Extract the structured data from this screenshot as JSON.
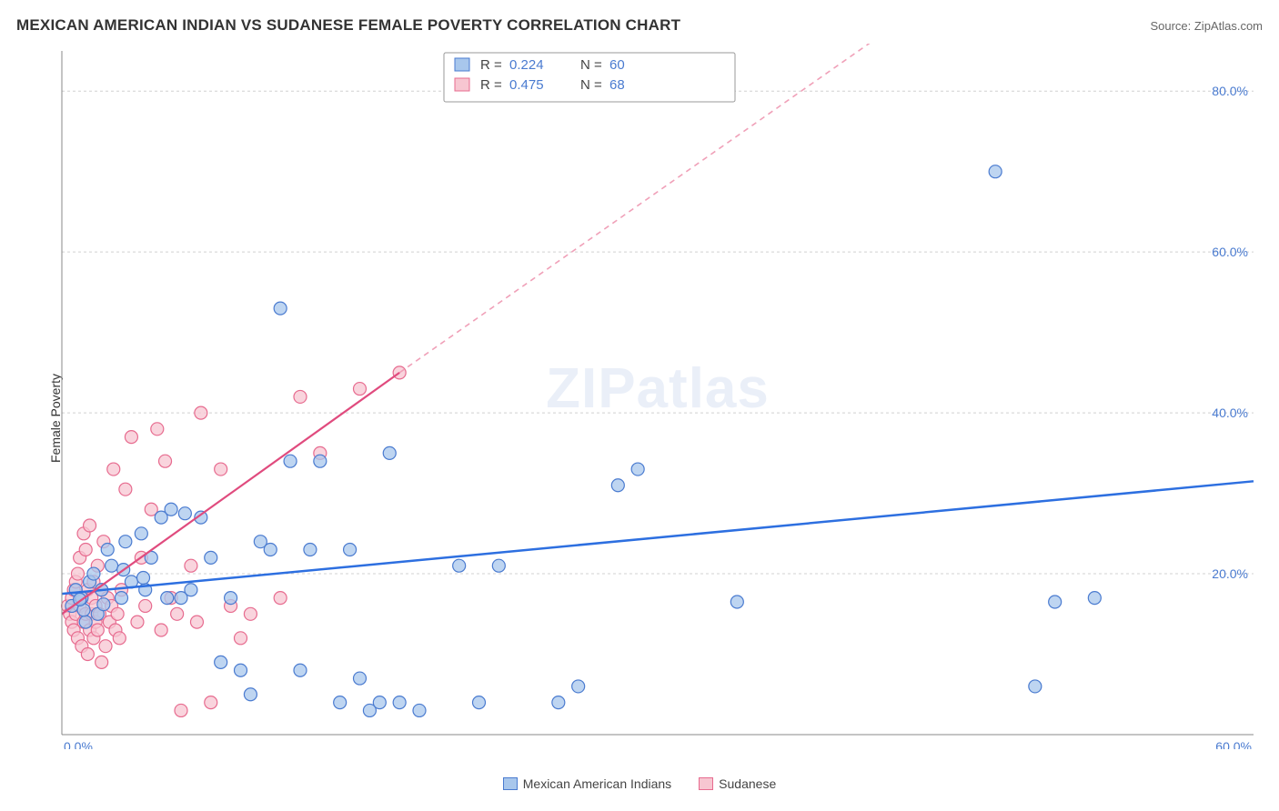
{
  "header": {
    "title": "MEXICAN AMERICAN INDIAN VS SUDANESE FEMALE POVERTY CORRELATION CHART",
    "source": "Source: ZipAtlas.com"
  },
  "ylabel": "Female Poverty",
  "watermark": "ZIPatlas",
  "chart": {
    "type": "scatter",
    "background_color": "#ffffff",
    "grid_color": "#d0d0d0",
    "axis_color": "#888888",
    "tick_label_color": "#4a7bd0",
    "xlim": [
      0,
      60
    ],
    "ylim": [
      0,
      85
    ],
    "xticks": [
      0,
      60
    ],
    "xtick_labels": [
      "0.0%",
      "60.0%"
    ],
    "yticks": [
      20,
      40,
      60,
      80
    ],
    "ytick_labels": [
      "20.0%",
      "40.0%",
      "60.0%",
      "80.0%"
    ],
    "marker_radius": 7,
    "series": [
      {
        "id": "blue",
        "label": "Mexican American Indians",
        "fill": "#a8c7ec",
        "stroke": "#4a7bd0",
        "points": [
          [
            0.5,
            16
          ],
          [
            0.7,
            18
          ],
          [
            1,
            17
          ],
          [
            1.2,
            14
          ],
          [
            1.4,
            19
          ],
          [
            1.6,
            20
          ],
          [
            1.8,
            15
          ],
          [
            2,
            18
          ],
          [
            2.3,
            23
          ],
          [
            2.5,
            21
          ],
          [
            3,
            17
          ],
          [
            3.2,
            24
          ],
          [
            3.5,
            19
          ],
          [
            4,
            25
          ],
          [
            4.2,
            18
          ],
          [
            4.5,
            22
          ],
          [
            5,
            27
          ],
          [
            5.3,
            17
          ],
          [
            5.5,
            28
          ],
          [
            6,
            17
          ],
          [
            6.2,
            27.5
          ],
          [
            6.5,
            18
          ],
          [
            7,
            27
          ],
          [
            7.5,
            22
          ],
          [
            8,
            9
          ],
          [
            8.5,
            17
          ],
          [
            9,
            8
          ],
          [
            9.5,
            5
          ],
          [
            10,
            24
          ],
          [
            10.5,
            23
          ],
          [
            11,
            53
          ],
          [
            11.5,
            34
          ],
          [
            12,
            8
          ],
          [
            12.5,
            23
          ],
          [
            13,
            34
          ],
          [
            14,
            4
          ],
          [
            14.5,
            23
          ],
          [
            15,
            7
          ],
          [
            15.5,
            3
          ],
          [
            16,
            4
          ],
          [
            16.5,
            35
          ],
          [
            17,
            4
          ],
          [
            18,
            3
          ],
          [
            20,
            21
          ],
          [
            21,
            4
          ],
          [
            22,
            21
          ],
          [
            25,
            4
          ],
          [
            26,
            6
          ],
          [
            28,
            31
          ],
          [
            29,
            33
          ],
          [
            34,
            16.5
          ],
          [
            47,
            70
          ],
          [
            49,
            6
          ],
          [
            50,
            16.5
          ],
          [
            52,
            17
          ],
          [
            1.1,
            15.5
          ],
          [
            2.1,
            16.2
          ],
          [
            3.1,
            20.5
          ],
          [
            4.1,
            19.5
          ],
          [
            0.9,
            16.8
          ]
        ],
        "trend": {
          "y_at_x0": 17.5,
          "y_at_xmax": 31.5,
          "color": "#2d6fe0",
          "width": 2.5
        }
      },
      {
        "id": "pink",
        "label": "Sudanese",
        "fill": "#f7c6d1",
        "stroke": "#e76b8f",
        "points": [
          [
            0.3,
            16
          ],
          [
            0.4,
            15
          ],
          [
            0.5,
            17
          ],
          [
            0.5,
            14
          ],
          [
            0.6,
            18
          ],
          [
            0.6,
            13
          ],
          [
            0.7,
            19
          ],
          [
            0.7,
            15
          ],
          [
            0.8,
            20
          ],
          [
            0.8,
            12
          ],
          [
            0.9,
            16
          ],
          [
            0.9,
            22
          ],
          [
            1.0,
            17
          ],
          [
            1.0,
            11
          ],
          [
            1.1,
            25
          ],
          [
            1.1,
            14
          ],
          [
            1.2,
            23
          ],
          [
            1.2,
            15
          ],
          [
            1.3,
            18
          ],
          [
            1.3,
            10
          ],
          [
            1.4,
            13
          ],
          [
            1.4,
            26
          ],
          [
            1.5,
            15
          ],
          [
            1.5,
            17
          ],
          [
            1.6,
            19
          ],
          [
            1.6,
            12
          ],
          [
            1.7,
            14
          ],
          [
            1.7,
            16
          ],
          [
            1.8,
            21
          ],
          [
            1.8,
            13
          ],
          [
            1.9,
            15
          ],
          [
            2.0,
            18
          ],
          [
            2.0,
            9
          ],
          [
            2.1,
            24
          ],
          [
            2.2,
            11
          ],
          [
            2.3,
            17
          ],
          [
            2.4,
            14
          ],
          [
            2.5,
            16
          ],
          [
            2.6,
            33
          ],
          [
            2.7,
            13
          ],
          [
            2.8,
            15
          ],
          [
            2.9,
            12
          ],
          [
            3.0,
            18
          ],
          [
            3.2,
            30.5
          ],
          [
            3.5,
            37
          ],
          [
            3.8,
            14
          ],
          [
            4.0,
            22
          ],
          [
            4.2,
            16
          ],
          [
            4.5,
            28
          ],
          [
            4.8,
            38
          ],
          [
            5.0,
            13
          ],
          [
            5.2,
            34
          ],
          [
            5.5,
            17
          ],
          [
            5.8,
            15
          ],
          [
            6.0,
            3
          ],
          [
            6.5,
            21
          ],
          [
            6.8,
            14
          ],
          [
            7.0,
            40
          ],
          [
            7.5,
            4
          ],
          [
            8.0,
            33
          ],
          [
            8.5,
            16
          ],
          [
            9.0,
            12
          ],
          [
            9.5,
            15
          ],
          [
            11,
            17
          ],
          [
            12,
            42
          ],
          [
            13,
            35
          ],
          [
            15,
            43
          ],
          [
            17,
            45
          ]
        ],
        "trend": {
          "y_at_x0": 15.0,
          "solid_end_x": 17,
          "y_at_solid_end": 45,
          "dash_end_x": 43,
          "y_at_dash_end": 90,
          "color": "#e04b7e",
          "width": 2.2,
          "dash_color": "#f0a0b8"
        }
      }
    ],
    "stats_box": {
      "rows": [
        {
          "swatch": "blue",
          "r_label": "R =",
          "r_value": "0.224",
          "n_label": "N =",
          "n_value": "60"
        },
        {
          "swatch": "pink",
          "r_label": "R =",
          "r_value": "0.475",
          "n_label": "N =",
          "n_value": "68"
        }
      ]
    }
  },
  "legend_bottom": [
    {
      "swatch": "blue",
      "label": "Mexican American Indians"
    },
    {
      "swatch": "pink",
      "label": "Sudanese"
    }
  ]
}
